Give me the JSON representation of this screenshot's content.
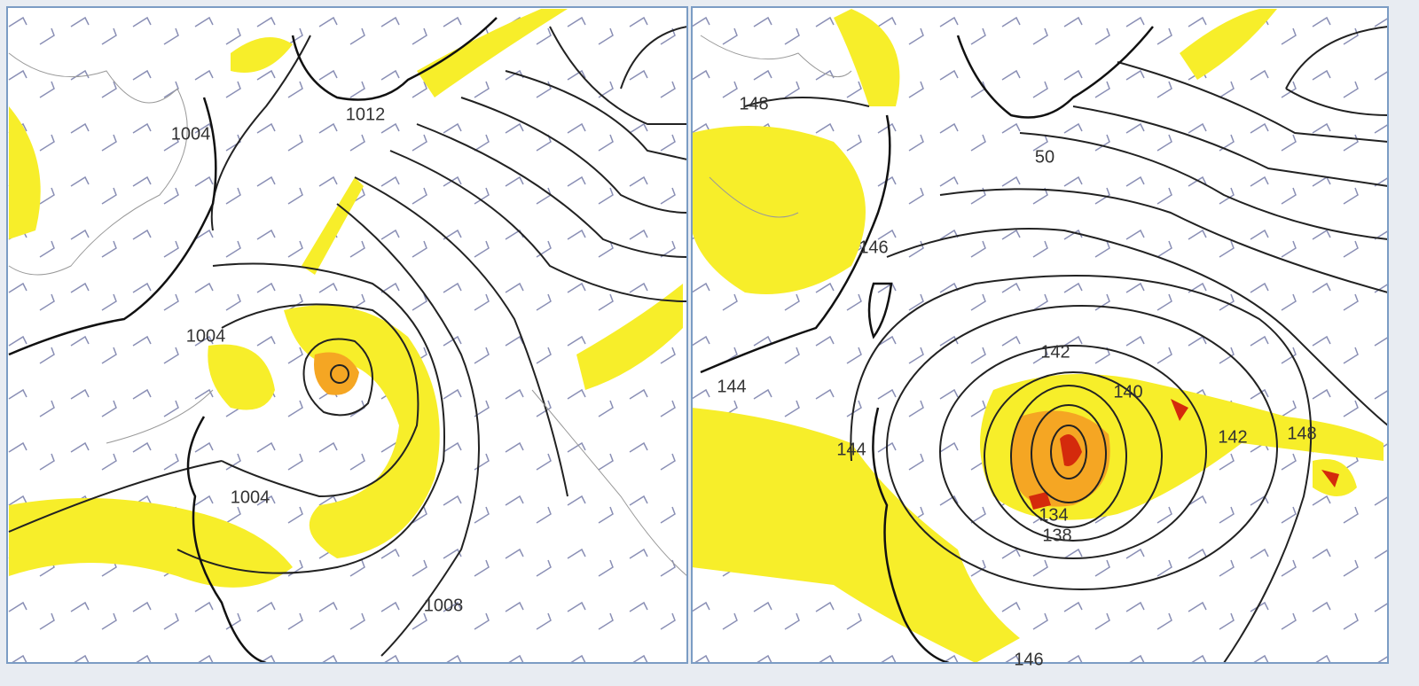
{
  "panels": [
    {
      "labels": [
        "1004",
        "1012",
        "1004",
        "1004",
        "1008"
      ]
    },
    {
      "labels": [
        "148",
        "50",
        "146",
        "144",
        "142",
        "140",
        "144",
        "134",
        "138",
        "142",
        "148",
        "146"
      ]
    }
  ]
}
